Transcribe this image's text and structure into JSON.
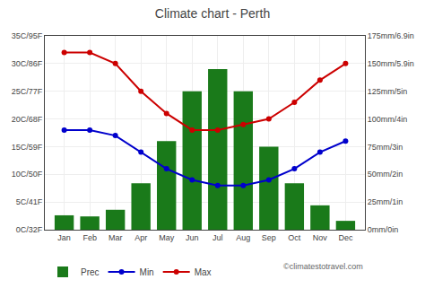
{
  "chart_data": {
    "type": "bar",
    "title": "Climate chart - Perth",
    "categories": [
      "Jan",
      "Feb",
      "Mar",
      "Apr",
      "May",
      "Jun",
      "Jul",
      "Aug",
      "Sep",
      "Oct",
      "Nov",
      "Dec"
    ],
    "series": [
      {
        "name": "Prec",
        "type": "bar",
        "color": "#1a7a1a",
        "axis": "y2",
        "values": [
          13,
          12,
          18,
          42,
          80,
          125,
          145,
          125,
          75,
          42,
          22,
          8
        ]
      },
      {
        "name": "Min",
        "type": "line",
        "color": "#0000cc",
        "marker": "circle",
        "values": [
          18,
          18,
          17,
          14,
          11,
          9,
          8,
          8,
          9,
          11,
          14,
          16
        ]
      },
      {
        "name": "Max",
        "type": "line",
        "color": "#cc0000",
        "marker": "circle",
        "values": [
          32,
          32,
          30,
          25,
          21,
          18,
          18,
          19,
          20,
          23,
          27,
          30
        ]
      }
    ],
    "ylim": [
      0,
      35
    ],
    "yticks": [
      {
        "value": 0,
        "label": "0C/32F"
      },
      {
        "value": 5,
        "label": "5C/41F"
      },
      {
        "value": 10,
        "label": "10C/50F"
      },
      {
        "value": 15,
        "label": "15C/59F"
      },
      {
        "value": 20,
        "label": "20C/68F"
      },
      {
        "value": 25,
        "label": "25C/77F"
      },
      {
        "value": 30,
        "label": "30C/86F"
      },
      {
        "value": 35,
        "label": "35C/95F"
      }
    ],
    "y2lim": [
      0,
      175
    ],
    "y2ticks": [
      {
        "value": 0,
        "label": "0mm/0in"
      },
      {
        "value": 25,
        "label": "25mm/1in"
      },
      {
        "value": 50,
        "label": "50mm/2in"
      },
      {
        "value": 75,
        "label": "75mm/3in"
      },
      {
        "value": 100,
        "label": "100mm/4in"
      },
      {
        "value": 125,
        "label": "125mm/5in"
      },
      {
        "value": 150,
        "label": "150mm/5.9in"
      },
      {
        "value": 175,
        "label": "175mm/6.9in"
      }
    ],
    "grid": true,
    "legend": "bottom",
    "annotations": [
      "©climatestotravel.com"
    ]
  }
}
